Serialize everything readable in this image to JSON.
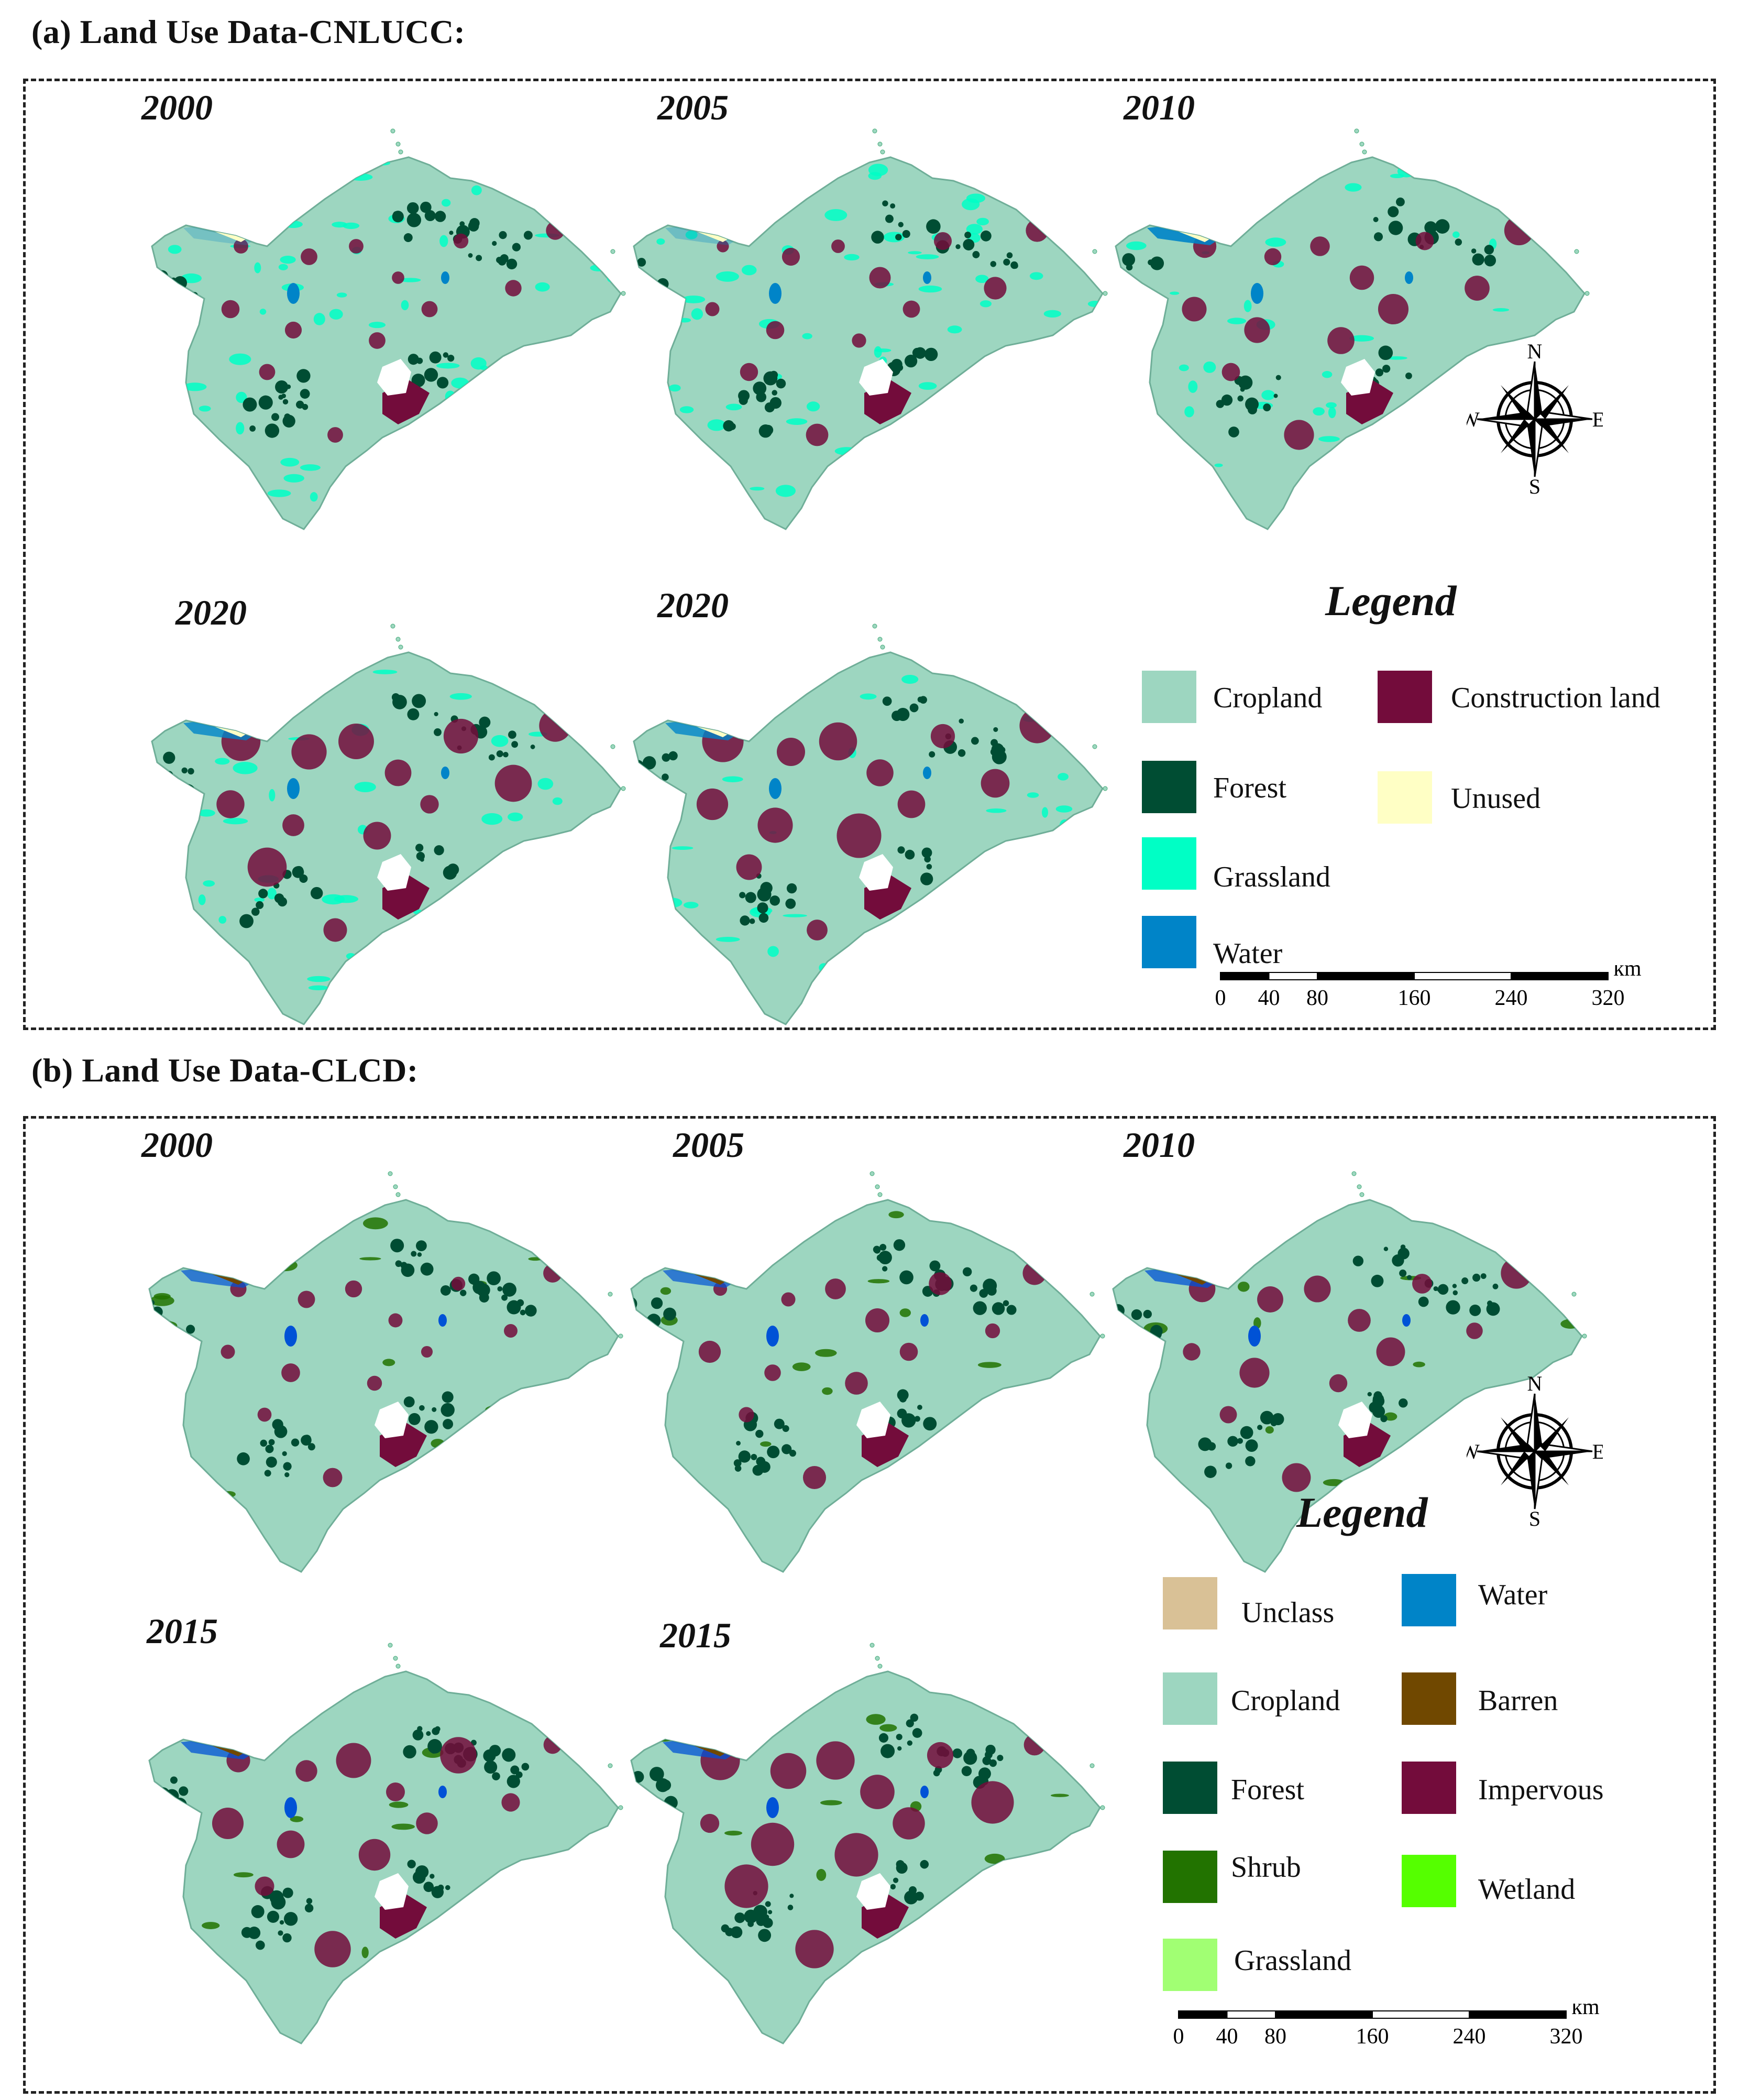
{
  "panel_a": {
    "title": "(a) Land Use Data-CNLUCC:",
    "maps": [
      {
        "year": "2000",
        "construction": 0.28,
        "grass": 0.9,
        "water": 0.25,
        "forest": 0.55
      },
      {
        "year": "2005",
        "construction": 0.38,
        "grass": 0.8,
        "water": 0.3,
        "forest": 0.5
      },
      {
        "year": "2010",
        "construction": 0.55,
        "grass": 0.55,
        "water": 0.9,
        "forest": 0.45
      },
      {
        "year": "2020",
        "construction": 0.8,
        "grass": 0.45,
        "water": 0.8,
        "forest": 0.45
      },
      {
        "year": "2020",
        "construction": 0.9,
        "grass": 0.4,
        "water": 0.8,
        "forest": 0.45
      }
    ],
    "legend": {
      "title": "Legend",
      "items": [
        {
          "label": "Cropland",
          "color": "#9dd6c0"
        },
        {
          "label": "Forest",
          "color": "#004d33"
        },
        {
          "label": "Grassland",
          "color": "#00ffc5"
        },
        {
          "label": "Water",
          "color": "#0084c8"
        },
        {
          "label": "Construction land",
          "color": "#730c3b"
        },
        {
          "label": "Unused",
          "color": "#ffffc5"
        }
      ]
    },
    "compass": {
      "n": "N",
      "s": "S",
      "e": "E",
      "w": "W"
    },
    "scale": {
      "unit": "km",
      "ticks": [
        "0",
        "40",
        "80",
        "160",
        "240",
        "320"
      ]
    }
  },
  "panel_b": {
    "title": "(b) Land Use Data-CLCD:",
    "maps": [
      {
        "year": "2000",
        "construction": 0.35,
        "grass": 0.2,
        "water": 0.7,
        "forest": 0.6
      },
      {
        "year": "2005",
        "construction": 0.45,
        "grass": 0.2,
        "water": 0.7,
        "forest": 0.6
      },
      {
        "year": "2010",
        "construction": 0.6,
        "grass": 0.2,
        "water": 0.75,
        "forest": 0.55
      },
      {
        "year": "2015",
        "construction": 0.8,
        "grass": 0.2,
        "water": 0.75,
        "forest": 0.55
      },
      {
        "year": "2015",
        "construction": 0.85,
        "grass": 0.2,
        "water": 0.75,
        "forest": 0.55
      }
    ],
    "legend": {
      "title": "Legend",
      "items": [
        {
          "label": "Unclass",
          "color": "#d9c196"
        },
        {
          "label": "Cropland",
          "color": "#9dd6c0"
        },
        {
          "label": "Forest",
          "color": "#004d33"
        },
        {
          "label": "Shrub",
          "color": "#227300"
        },
        {
          "label": "Grassland",
          "color": "#a1ff73"
        },
        {
          "label": "Water",
          "color": "#0084c8"
        },
        {
          "label": "Barren",
          "color": "#704800"
        },
        {
          "label": "Impervous",
          "color": "#730c3b"
        },
        {
          "label": "Wetland",
          "color": "#55ff00"
        }
      ]
    },
    "compass": {
      "n": "N",
      "s": "S",
      "e": "E",
      "w": "W"
    },
    "scale": {
      "unit": "km",
      "ticks": [
        "0",
        "40",
        "80",
        "160",
        "240",
        "320"
      ]
    }
  }
}
